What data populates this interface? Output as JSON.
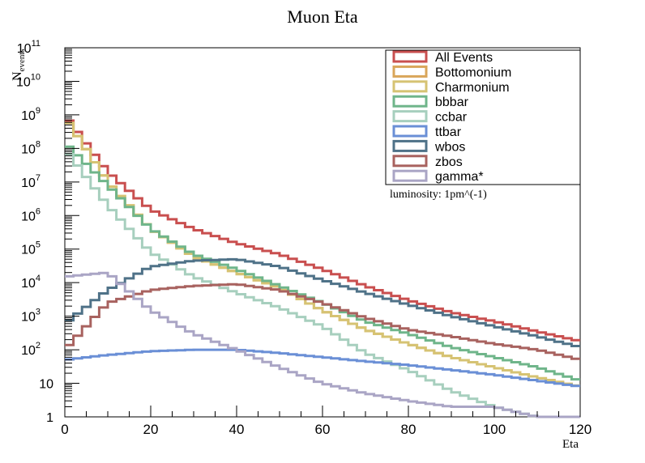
{
  "chart_data": {
    "type": "line",
    "title": "Muon Eta",
    "xlabel": "Eta",
    "ylabel": "N",
    "ylabel_sub": "events",
    "annotation": "luminosity: 1pm^(-1)",
    "xlim": [
      0,
      120
    ],
    "ylim": [
      1,
      100000000000
    ],
    "yscale": "log",
    "xticks": [
      "0",
      "20",
      "40",
      "60",
      "80",
      "100",
      "120"
    ],
    "yticks": [
      {
        "base": "1",
        "exp": ""
      },
      {
        "base": "10",
        "exp": ""
      },
      {
        "base": "10",
        "exp": "2"
      },
      {
        "base": "10",
        "exp": "3"
      },
      {
        "base": "10",
        "exp": "4"
      },
      {
        "base": "10",
        "exp": "5"
      },
      {
        "base": "10",
        "exp": "6"
      },
      {
        "base": "10",
        "exp": "7"
      },
      {
        "base": "10",
        "exp": "8"
      },
      {
        "base": "10",
        "exp": "9"
      },
      {
        "base": "10",
        "exp": "10"
      },
      {
        "base": "10",
        "exp": "11"
      }
    ],
    "legend_position": "top-right",
    "x": [
      0,
      10,
      20,
      30,
      40,
      50,
      60,
      70,
      80,
      90,
      100,
      110,
      120
    ],
    "series": [
      {
        "name": "All Events",
        "color": "#c94f4f",
        "values": [
          1000000000,
          20000000,
          1500000,
          400000,
          150000,
          70000,
          25000,
          8000,
          3000,
          1300,
          700,
          350,
          180
        ]
      },
      {
        "name": "Bottomonium",
        "color": "#d9a65a",
        "values": [
          900000000,
          10000000,
          400000,
          60000,
          20000,
          7000,
          1500,
          400,
          150,
          60,
          30,
          15,
          8
        ]
      },
      {
        "name": "Charmonium",
        "color": "#d6c373",
        "values": [
          900000000,
          10000000,
          400000,
          60000,
          20000,
          7000,
          1500,
          400,
          150,
          60,
          30,
          15,
          8
        ]
      },
      {
        "name": "bbbar",
        "color": "#6fb58a",
        "values": [
          150000000,
          8000000,
          400000,
          70000,
          25000,
          8000,
          2500,
          700,
          300,
          120,
          60,
          30,
          12
        ]
      },
      {
        "name": "ccbar",
        "color": "#a7cfbe",
        "values": [
          100000000,
          2000000,
          80000,
          15000,
          5000,
          1800,
          500,
          80,
          25,
          6,
          2,
          1,
          1
        ]
      },
      {
        "name": "ttbar",
        "color": "#6a8fd6",
        "values": [
          50,
          70,
          90,
          100,
          100,
          80,
          60,
          45,
          35,
          25,
          18,
          12,
          8
        ]
      },
      {
        "name": "wbos",
        "color": "#4f7288",
        "values": [
          600,
          6000,
          30000,
          45000,
          50000,
          30000,
          12000,
          5000,
          2200,
          1000,
          500,
          250,
          120
        ]
      },
      {
        "name": "zbos",
        "color": "#a8625f",
        "values": [
          100,
          2500,
          6000,
          8000,
          9000,
          6000,
          2500,
          900,
          400,
          250,
          150,
          100,
          50
        ]
      },
      {
        "name": "gamma*",
        "color": "#aaa5c5",
        "values": [
          15000,
          20000,
          1500,
          300,
          100,
          30,
          10,
          5,
          3,
          2,
          2,
          1,
          1
        ]
      }
    ]
  }
}
